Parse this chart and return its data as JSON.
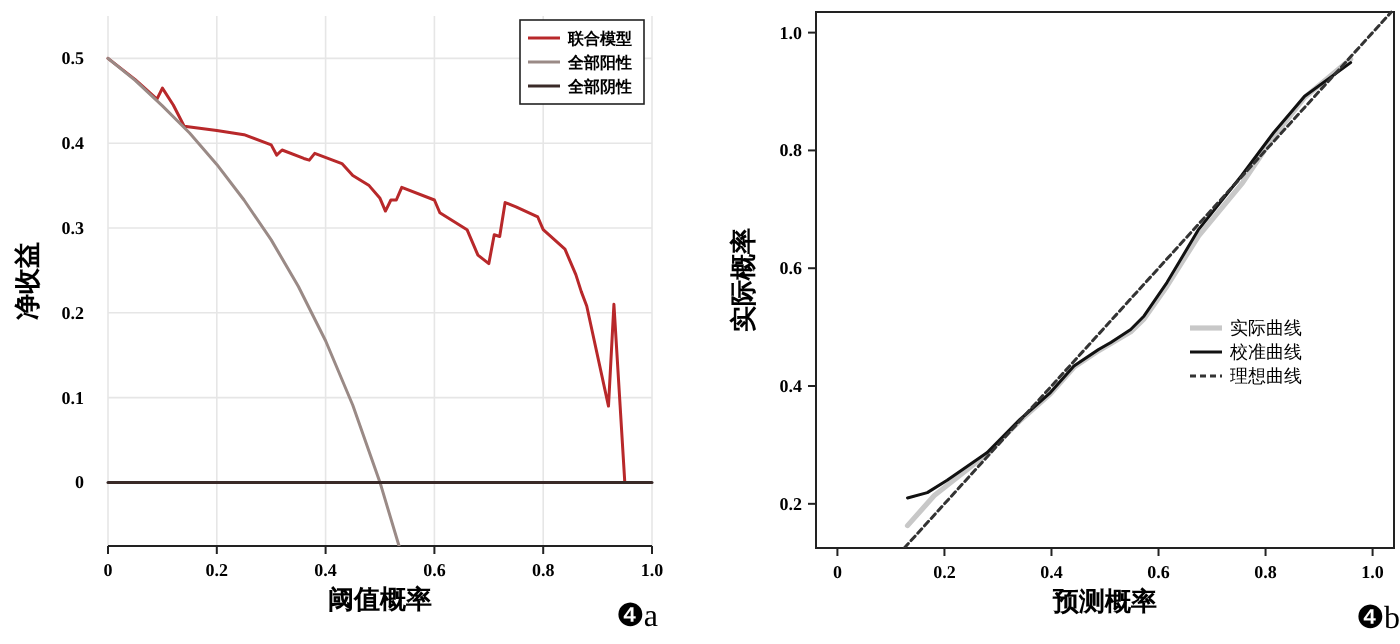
{
  "chart_data": [
    {
      "type": "line",
      "xlabel": "阈值概率",
      "ylabel": "净收益",
      "xlim": [
        0,
        1
      ],
      "ylim": [
        -0.075,
        0.55
      ],
      "xticks": [
        0,
        0.2,
        0.4,
        0.6,
        0.8,
        {
          "value": 1,
          "label": "1.0"
        }
      ],
      "yticks": [
        0,
        0.1,
        0.2,
        0.3,
        0.4,
        0.5
      ],
      "grid": true,
      "legend": "top right",
      "marker": "none",
      "annotations": [
        "❹a"
      ],
      "series": [
        {
          "name": "联合模型",
          "color": "#b8282a",
          "x": [
            0,
            0.05,
            0.09,
            0.1,
            0.12,
            0.14,
            0.2,
            0.25,
            0.3,
            0.31,
            0.32,
            0.36,
            0.37,
            0.38,
            0.43,
            0.45,
            0.48,
            0.5,
            0.51,
            0.52,
            0.53,
            0.54,
            0.6,
            0.61,
            0.66,
            0.68,
            0.7,
            0.71,
            0.72,
            0.73,
            0.75,
            0.79,
            0.8,
            0.84,
            0.86,
            0.87,
            0.88,
            0.92,
            0.93,
            0.95,
            0.99
          ],
          "values": [
            0.5,
            0.475,
            0.452,
            0.465,
            0.445,
            0.42,
            0.415,
            0.41,
            0.398,
            0.386,
            0.392,
            0.382,
            0.38,
            0.388,
            0.376,
            0.362,
            0.35,
            0.335,
            0.32,
            0.333,
            0.333,
            0.348,
            0.333,
            0.318,
            0.298,
            0.268,
            0.258,
            0.292,
            0.29,
            0.33,
            0.325,
            0.313,
            0.298,
            0.275,
            0.245,
            0.225,
            0.208,
            0.09,
            0.21,
            0,
            0
          ]
        },
        {
          "name": "全部阳性",
          "color": "#9a8a86",
          "x": [
            0,
            0.05,
            0.1,
            0.15,
            0.2,
            0.25,
            0.3,
            0.35,
            0.4,
            0.45,
            0.5,
            0.535
          ],
          "values": [
            0.5,
            0.474,
            0.444,
            0.412,
            0.375,
            0.333,
            0.286,
            0.231,
            0.167,
            0.091,
            0,
            -0.075
          ]
        },
        {
          "name": "全部阴性",
          "color": "#3a2a28",
          "x": [
            0,
            1
          ],
          "values": [
            0,
            0
          ]
        }
      ]
    },
    {
      "type": "line",
      "xlabel": "预测概率",
      "ylabel": "实际概率",
      "xlim": [
        -0.04,
        1.04
      ],
      "ylim": [
        0.125,
        1.035
      ],
      "xticks": [
        0,
        0.2,
        0.4,
        0.6,
        0.8,
        {
          "value": 1,
          "label": "1.0"
        }
      ],
      "yticks": [
        0.2,
        0.4,
        0.6,
        0.8,
        {
          "value": 1,
          "label": "1.0"
        }
      ],
      "grid": false,
      "legend": "right",
      "marker": "none",
      "annotations": [
        "❹b"
      ],
      "series": [
        {
          "name": "实际曲线",
          "color": "#c8c8c8",
          "x": [
            0.131,
            0.181,
            0.28,
            0.342,
            0.398,
            0.442,
            0.488,
            0.511,
            0.548,
            0.573,
            0.616,
            0.675,
            0.757,
            0.815,
            0.873,
            0.959
          ],
          "values": [
            0.163,
            0.214,
            0.285,
            0.342,
            0.387,
            0.432,
            0.46,
            0.472,
            0.492,
            0.514,
            0.57,
            0.655,
            0.745,
            0.823,
            0.89,
            0.955
          ]
        },
        {
          "name": "校准曲线",
          "color": "#111111",
          "x": [
            0.131,
            0.168,
            0.205,
            0.28,
            0.342,
            0.398,
            0.442,
            0.488,
            0.511,
            0.548,
            0.573,
            0.616,
            0.675,
            0.755,
            0.815,
            0.873,
            0.959
          ],
          "values": [
            0.21,
            0.219,
            0.24,
            0.287,
            0.344,
            0.389,
            0.434,
            0.462,
            0.474,
            0.496,
            0.519,
            0.576,
            0.666,
            0.757,
            0.83,
            0.892,
            0.949
          ]
        },
        {
          "name": "理想曲线",
          "color": "#333333",
          "line_style": "dashed",
          "x": [
            0.125,
            1.035
          ],
          "values": [
            0.125,
            1.035
          ]
        }
      ]
    }
  ]
}
